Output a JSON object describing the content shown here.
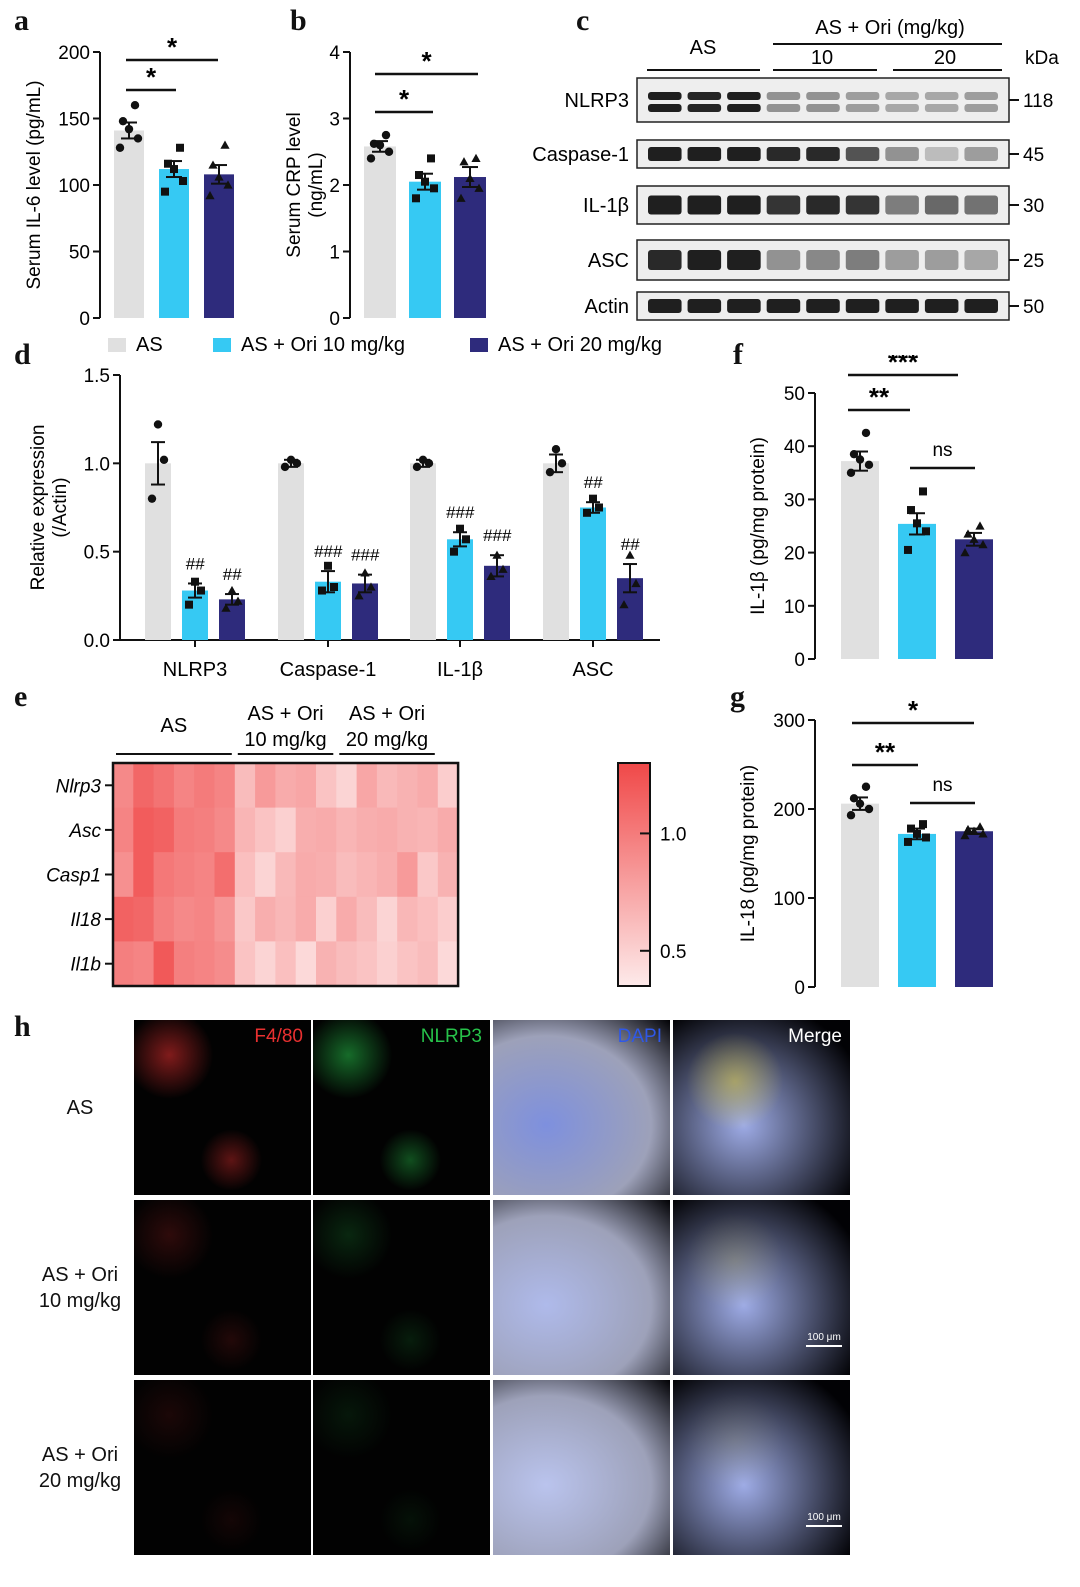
{
  "colors": {
    "as": "#e0e0e0",
    "ori10": "#36c9f3",
    "ori20": "#2e2b7c",
    "axis": "#111111",
    "heat_hi": "#f04848",
    "heat_lo": "#fdeaea"
  },
  "panel_labels": {
    "a": "a",
    "b": "b",
    "c": "c",
    "d": "d",
    "e": "e",
    "f": "f",
    "g": "g",
    "h": "h"
  },
  "legend": {
    "as": "AS",
    "ori10": "AS + Ori 10 mg/kg",
    "ori20": "AS + Ori 20 mg/kg"
  },
  "chart_data": [
    {
      "id": "a",
      "type": "bar",
      "title": "",
      "xlabel": "",
      "ylabel": "Serum IL-6 level (pg/mL)",
      "ylim": [
        0,
        200
      ],
      "ticks": [
        0,
        50,
        100,
        150,
        200
      ],
      "categories": [
        "AS",
        "AS + Ori 10 mg/kg",
        "AS + Ori 20 mg/kg"
      ],
      "values": [
        141,
        112,
        108
      ],
      "errors": [
        6,
        6,
        7
      ],
      "points": [
        [
          128,
          135,
          142,
          148,
          160
        ],
        [
          95,
          103,
          112,
          116,
          128
        ],
        [
          92,
          100,
          106,
          115,
          130
        ]
      ],
      "significance": [
        {
          "from": 0,
          "to": 1,
          "label": "*"
        },
        {
          "from": 0,
          "to": 2,
          "label": "*"
        }
      ]
    },
    {
      "id": "b",
      "type": "bar",
      "title": "",
      "xlabel": "",
      "ylabel": "Serum CRP level (ng/mL)",
      "ylim": [
        0,
        4
      ],
      "ticks": [
        0,
        1,
        2,
        3,
        4
      ],
      "categories": [
        "AS",
        "AS + Ori 10 mg/kg",
        "AS + Ori 20 mg/kg"
      ],
      "values": [
        2.58,
        2.05,
        2.12
      ],
      "errors": [
        0.08,
        0.12,
        0.15
      ],
      "points": [
        [
          2.4,
          2.5,
          2.6,
          2.62,
          2.75
        ],
        [
          1.8,
          1.95,
          2.05,
          2.15,
          2.4
        ],
        [
          1.8,
          1.95,
          2.1,
          2.35,
          2.4
        ]
      ],
      "significance": [
        {
          "from": 0,
          "to": 1,
          "label": "*"
        },
        {
          "from": 0,
          "to": 2,
          "label": "*"
        }
      ]
    },
    {
      "id": "d",
      "type": "bar",
      "title": "",
      "xlabel": "",
      "ylabel": "Relative expression (/Actin)",
      "ylim": [
        0,
        1.5
      ],
      "ticks": [
        "0.0",
        "0.5",
        "1.0",
        "1.5"
      ],
      "categories": [
        "NLRP3",
        "Caspase-1",
        "IL-1β",
        "ASC"
      ],
      "series": [
        {
          "name": "AS",
          "values": [
            1.0,
            1.0,
            1.0,
            1.0
          ],
          "errors": [
            0.12,
            0.02,
            0.02,
            0.05
          ],
          "points": [
            [
              0.8,
              1.02,
              1.22
            ],
            [
              0.98,
              1.0,
              1.02
            ],
            [
              0.98,
              1.0,
              1.02
            ],
            [
              0.95,
              1.0,
              1.08
            ]
          ]
        },
        {
          "name": "AS + Ori 10 mg/kg",
          "values": [
            0.28,
            0.33,
            0.57,
            0.75
          ],
          "errors": [
            0.04,
            0.06,
            0.04,
            0.03
          ],
          "points": [
            [
              0.2,
              0.28,
              0.33
            ],
            [
              0.28,
              0.3,
              0.42
            ],
            [
              0.5,
              0.57,
              0.63
            ],
            [
              0.72,
              0.75,
              0.8
            ]
          ]
        },
        {
          "name": "AS + Ori 20 mg/kg",
          "values": [
            0.23,
            0.32,
            0.42,
            0.35
          ],
          "errors": [
            0.03,
            0.05,
            0.06,
            0.08
          ],
          "points": [
            [
              0.18,
              0.22,
              0.28
            ],
            [
              0.25,
              0.3,
              0.38
            ],
            [
              0.36,
              0.4,
              0.48
            ],
            [
              0.2,
              0.32,
              0.48
            ]
          ]
        }
      ],
      "annotations": [
        [
          "",
          "##",
          "##"
        ],
        [
          "",
          "###",
          "###"
        ],
        [
          "",
          "###",
          "###"
        ],
        [
          "",
          "##",
          "##"
        ]
      ]
    },
    {
      "id": "f",
      "type": "bar",
      "title": "",
      "xlabel": "",
      "ylabel": "IL-1β (pg/mg protein)",
      "ylim": [
        0,
        50
      ],
      "ticks": [
        0,
        10,
        20,
        30,
        40,
        50
      ],
      "categories": [
        "AS",
        "AS + Ori 10 mg/kg",
        "AS + Ori 20 mg/kg"
      ],
      "values": [
        37.2,
        25.4,
        22.5
      ],
      "errors": [
        1.8,
        2.0,
        1.2
      ],
      "points": [
        [
          35,
          36.5,
          37.5,
          38.5,
          42.5
        ],
        [
          20.5,
          24,
          25.5,
          28,
          31.5
        ],
        [
          20,
          21.5,
          22.5,
          23.5,
          25
        ]
      ],
      "significance": [
        {
          "from": 0,
          "to": 1,
          "label": "**"
        },
        {
          "from": 0,
          "to": 2,
          "label": "***"
        },
        {
          "from": 1,
          "to": 2,
          "label": "ns"
        }
      ]
    },
    {
      "id": "g",
      "type": "bar",
      "title": "",
      "xlabel": "",
      "ylabel": "IL-18 (pg/mg protein)",
      "ylim": [
        0,
        300
      ],
      "ticks": [
        0,
        100,
        200,
        300
      ],
      "categories": [
        "AS",
        "AS + Ori 10 mg/kg",
        "AS + Ori 20 mg/kg"
      ],
      "values": [
        206,
        172,
        175
      ],
      "errors": [
        7,
        6,
        3
      ],
      "points": [
        [
          193,
          200,
          206,
          212,
          225
        ],
        [
          163,
          168,
          172,
          178,
          183
        ],
        [
          170,
          172,
          175,
          177,
          180
        ]
      ],
      "significance": [
        {
          "from": 0,
          "to": 1,
          "label": "**"
        },
        {
          "from": 0,
          "to": 2,
          "label": "*"
        },
        {
          "from": 1,
          "to": 2,
          "label": "ns"
        }
      ]
    },
    {
      "id": "e",
      "type": "heatmap",
      "rows": [
        "Nlrp3",
        "Asc",
        "Casp1",
        "Il18",
        "Il1b"
      ],
      "groups": [
        {
          "label": "AS",
          "columns": 6
        },
        {
          "label": "AS + Ori\n10 mg/kg",
          "columns": 5
        },
        {
          "label": "AS + Ori\n20 mg/kg",
          "columns": 5
        }
      ],
      "colorbar": {
        "ticks": [
          "1.0",
          "0.5"
        ],
        "range": [
          0.35,
          1.3
        ]
      },
      "values": [
        [
          0.92,
          1.12,
          1.05,
          0.95,
          1.0,
          0.95,
          0.62,
          0.82,
          0.72,
          0.75,
          0.58,
          0.48,
          0.75,
          0.64,
          0.68,
          0.72,
          0.52
        ],
        [
          0.95,
          1.18,
          1.15,
          1.0,
          0.98,
          0.92,
          0.66,
          0.58,
          0.5,
          0.7,
          0.72,
          0.66,
          0.7,
          0.72,
          0.68,
          0.66,
          0.72
        ],
        [
          0.88,
          1.18,
          1.02,
          0.98,
          0.95,
          1.08,
          0.6,
          0.48,
          0.64,
          0.72,
          0.7,
          0.62,
          0.66,
          0.7,
          0.82,
          0.55,
          0.68
        ],
        [
          1.15,
          1.12,
          0.98,
          0.92,
          0.94,
          0.85,
          0.55,
          0.7,
          0.65,
          0.72,
          0.5,
          0.72,
          0.62,
          0.48,
          0.65,
          0.6,
          0.52
        ],
        [
          0.98,
          0.95,
          1.2,
          0.98,
          0.95,
          0.9,
          0.58,
          0.48,
          0.6,
          0.45,
          0.68,
          0.62,
          0.58,
          0.5,
          0.58,
          0.62,
          0.45
        ]
      ]
    },
    {
      "id": "c",
      "type": "western-blot",
      "group_headers": {
        "as": "AS",
        "ori": "AS + Ori (mg/kg)",
        "dose10": "10",
        "dose20": "20"
      },
      "kda_header": "kDa",
      "bands": [
        {
          "name": "NLRP3",
          "kda": "118",
          "intensity": [
            0.95,
            0.92,
            0.95,
            0.4,
            0.4,
            0.35,
            0.3,
            0.3,
            0.35
          ]
        },
        {
          "name": "Caspase-1",
          "kda": "45",
          "intensity": [
            0.95,
            0.95,
            0.95,
            0.9,
            0.9,
            0.7,
            0.4,
            0.2,
            0.35
          ]
        },
        {
          "name": "IL-1β",
          "kda": "30",
          "intensity": [
            0.95,
            0.95,
            0.95,
            0.85,
            0.9,
            0.85,
            0.5,
            0.6,
            0.55
          ]
        },
        {
          "name": "ASC",
          "kda": "25",
          "intensity": [
            0.9,
            0.95,
            0.95,
            0.4,
            0.45,
            0.5,
            0.35,
            0.35,
            0.3
          ]
        },
        {
          "name": "Actin",
          "kda": "50",
          "intensity": [
            0.95,
            0.95,
            0.95,
            0.95,
            0.95,
            0.95,
            0.95,
            0.95,
            0.95
          ]
        }
      ]
    }
  ],
  "panel_h": {
    "columns": [
      "F4/80",
      "NLRP3",
      "DAPI",
      "Merge"
    ],
    "column_colors": [
      "#e83030",
      "#27c24a",
      "#2f58e8",
      "#ffffff"
    ],
    "rows": [
      "AS",
      "AS + Ori\n10 mg/kg",
      "AS + Ori\n20 mg/kg"
    ],
    "scale_bar": "100 μm"
  }
}
